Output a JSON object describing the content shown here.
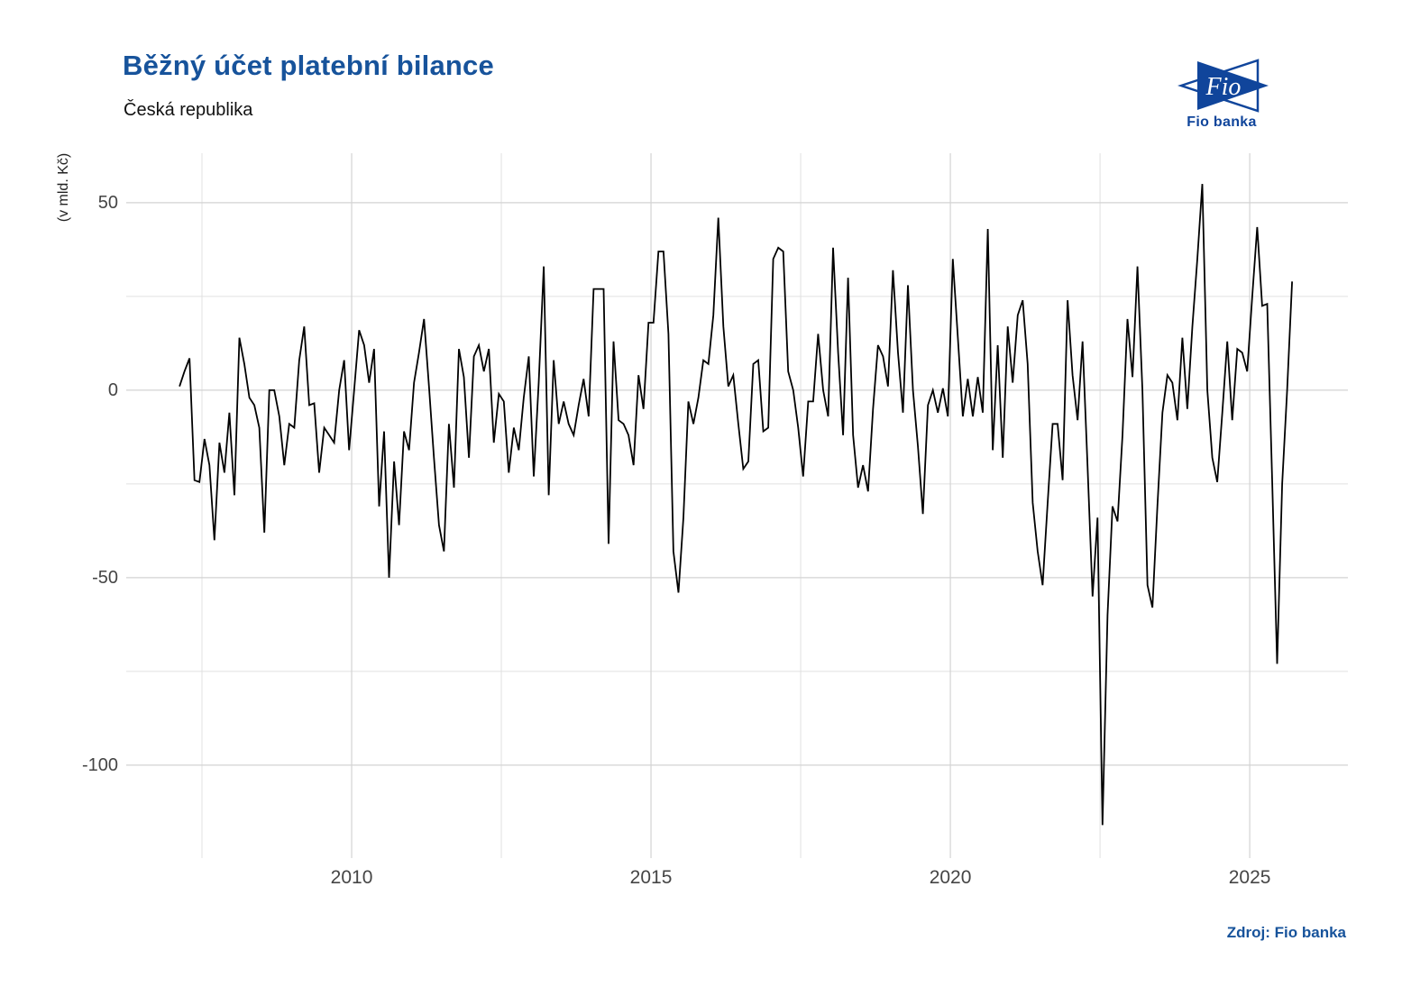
{
  "header": {
    "title": "Běžný účet platební bilance",
    "subtitle": "Česká republika"
  },
  "logo": {
    "mark_text": "Fio",
    "caption": "Fio banka",
    "blue": "#10459B"
  },
  "source_note": "Zdroj: Fio banka",
  "chart_data": {
    "type": "line",
    "title": "Běžný účet platební bilance",
    "subtitle": "Česká republika",
    "ylabel": "(v mld. Kč)",
    "legend": "none",
    "grid": true,
    "line_color": "#000000",
    "grid_major_color": "#d3d3d3",
    "grid_minor_color": "#e0e0e0",
    "x_axis": {
      "ticks": [
        2010,
        2015,
        2020,
        2025
      ],
      "minor": [
        2007.5,
        2012.5,
        2017.5,
        2022.5
      ],
      "lim": [
        2006.235,
        2026.64
      ]
    },
    "y_axis": {
      "ticks": [
        50,
        0,
        -50,
        -100
      ],
      "minor": [
        25,
        -25,
        -75
      ],
      "lim": [
        -124.8,
        63.2
      ]
    },
    "series": [
      {
        "name": "Běžný účet platební bilance (v mld. Kč)",
        "frequency": "monthly",
        "start_year": 2007,
        "start_month": 2,
        "values": [
          1,
          5,
          8.5,
          -24,
          -24.5,
          -13,
          -20,
          -40,
          -14,
          -22,
          -6,
          -28,
          14,
          7,
          -2,
          -4,
          -10,
          -38,
          0,
          0,
          -7,
          -20,
          -9,
          -10,
          8,
          17,
          -4,
          -3.5,
          -22,
          -10,
          -12,
          -14,
          0,
          8,
          -16,
          0,
          16,
          12,
          2,
          11,
          -31,
          -11,
          -50,
          -19,
          -36,
          -11,
          -16,
          2,
          10,
          19,
          1,
          -18,
          -36,
          -43,
          -9,
          -26,
          11,
          3.5,
          -18,
          9,
          12,
          5,
          11,
          -14,
          -1,
          -3,
          -22,
          -10,
          -16,
          -2,
          9,
          -23,
          2,
          33,
          -28,
          8,
          -9,
          -3,
          -9,
          -12,
          -4,
          3,
          -7,
          27,
          27,
          27,
          -41,
          13,
          -8,
          -9,
          -12,
          -20,
          4,
          -5,
          18,
          18,
          37,
          37,
          15,
          -43,
          -54,
          -34,
          -3,
          -9,
          -2,
          8,
          7,
          20,
          46,
          17,
          1,
          4,
          -9,
          -21,
          -19,
          7,
          8,
          -11,
          -10,
          35,
          38,
          37,
          5,
          0,
          -10,
          -23,
          -3,
          -3,
          15,
          0,
          -7,
          38,
          10,
          -12,
          30,
          -12,
          -26,
          -20,
          -27,
          -5,
          12,
          9,
          1,
          32,
          10,
          -6,
          28,
          0,
          -15,
          -33,
          -4,
          0,
          -6,
          0.5,
          -7,
          35,
          14,
          -7,
          3,
          -7,
          3.5,
          -6,
          43,
          -16,
          12,
          -18,
          17,
          2,
          20,
          24,
          7,
          -30,
          -43,
          -52,
          -30,
          -9,
          -9,
          -24,
          24,
          4,
          -8,
          13,
          -20,
          -55,
          -34,
          -116,
          -60,
          -31,
          -35,
          -12,
          19,
          3.5,
          33,
          0,
          -52,
          -58,
          -31,
          -6,
          4,
          2,
          -8,
          14,
          -5,
          17,
          35,
          55,
          0,
          -18,
          -24.5,
          -6,
          13,
          -8,
          11,
          10,
          5,
          25,
          43.5,
          22.5,
          23,
          -24,
          -73,
          -25,
          0,
          29
        ]
      }
    ]
  }
}
